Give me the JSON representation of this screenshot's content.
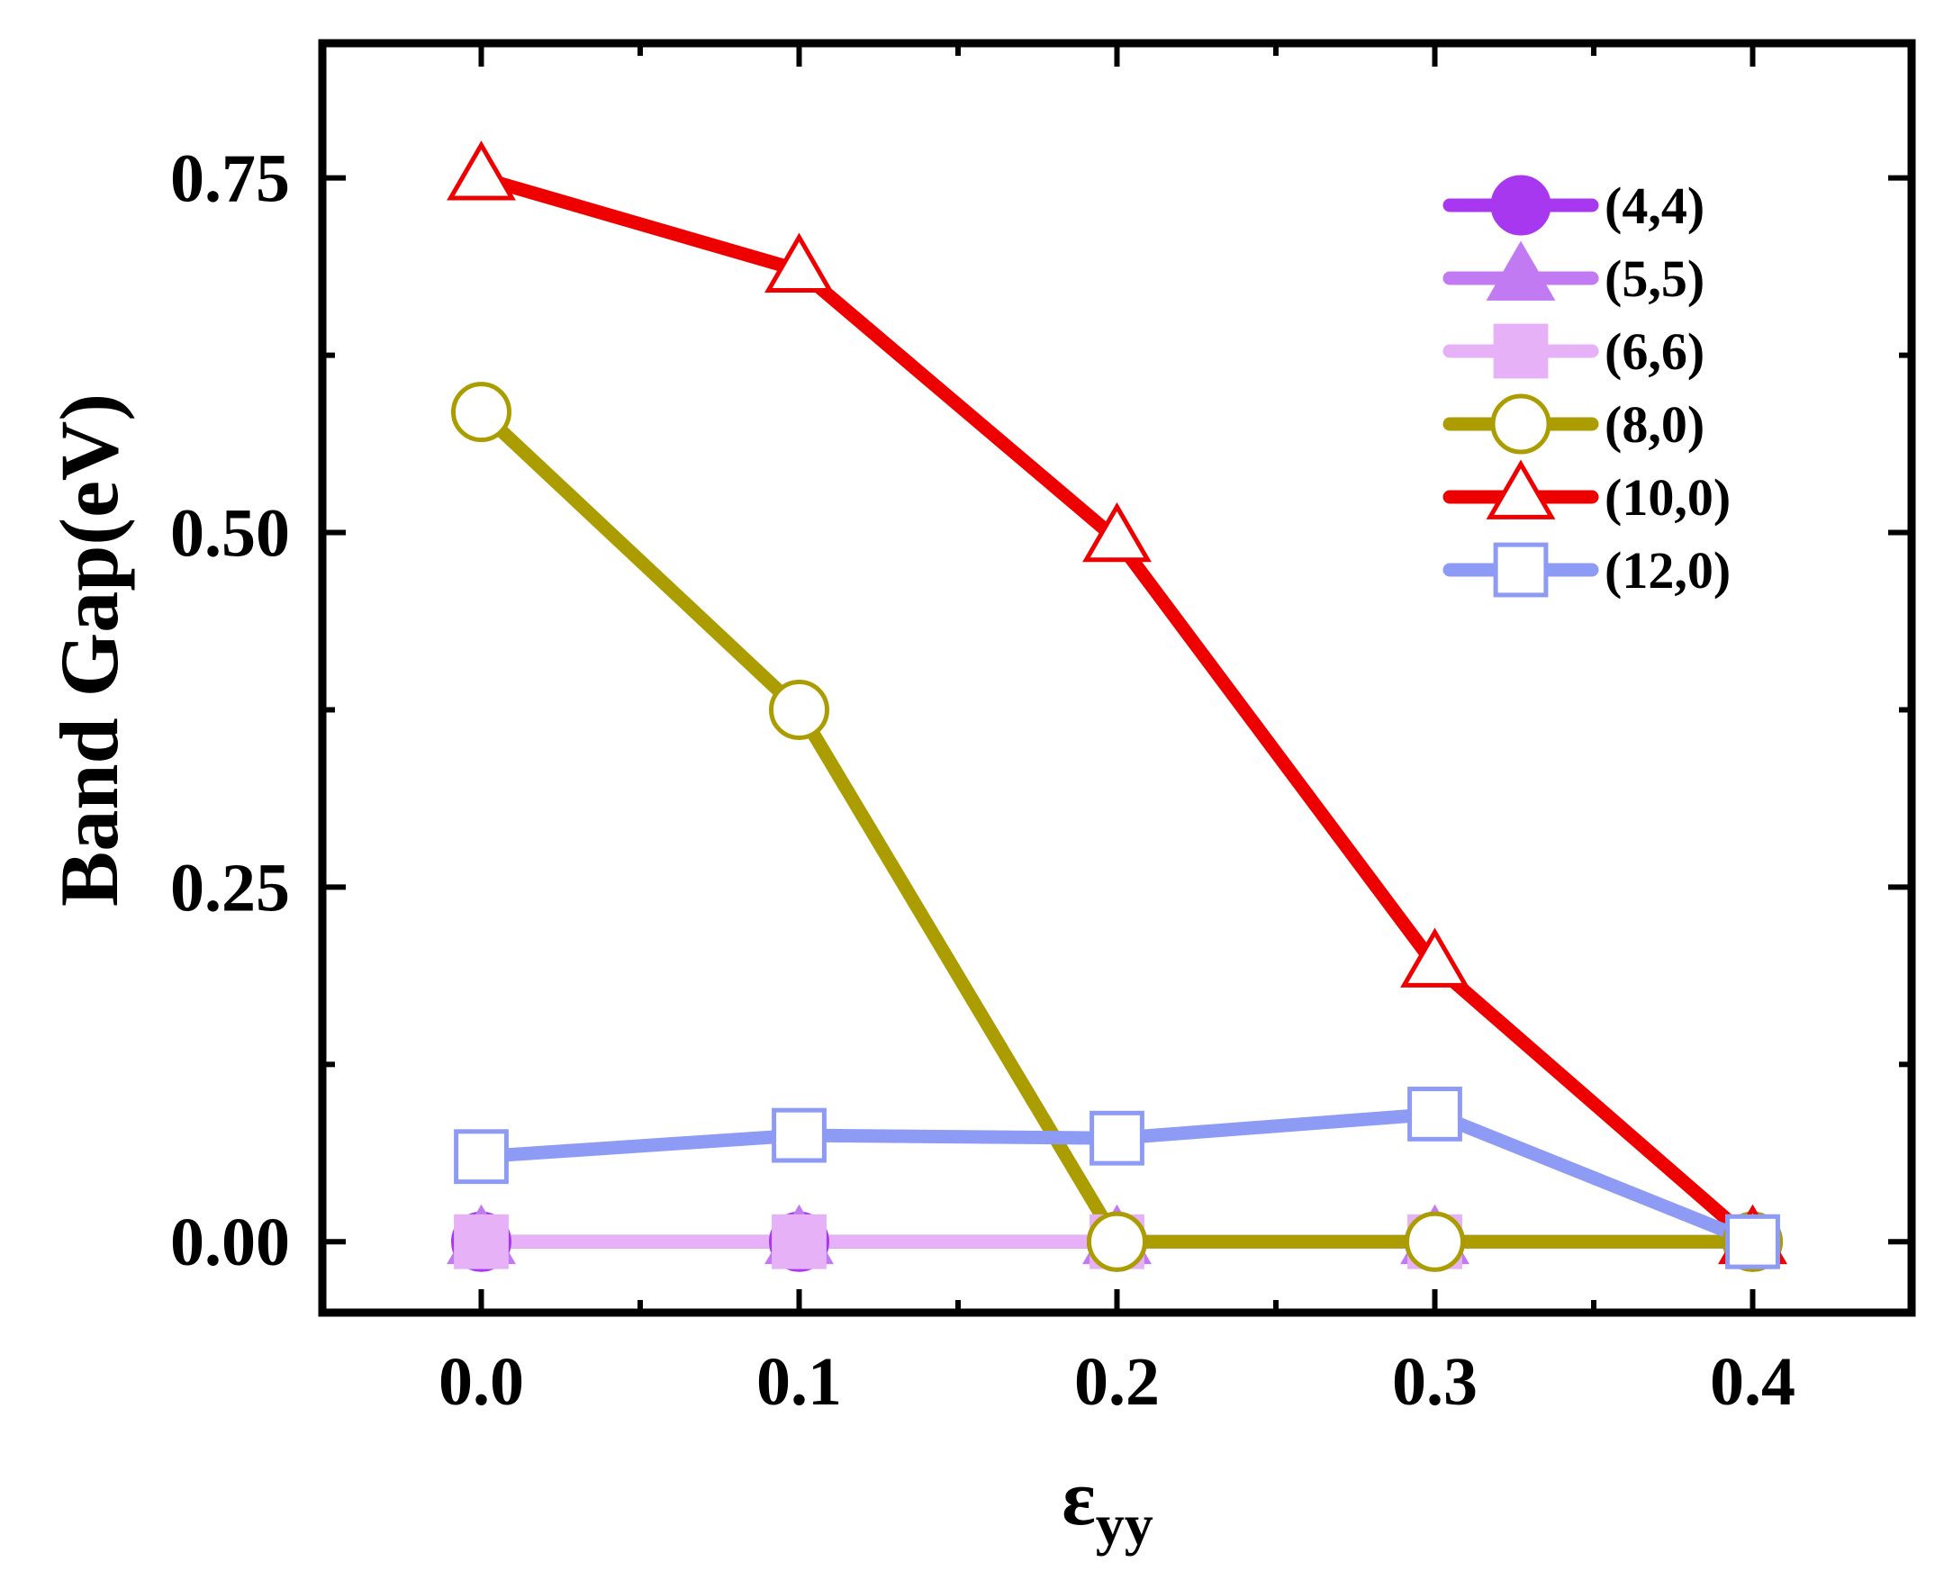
{
  "chart_data": {
    "type": "line",
    "xlabel": {
      "main": "ε",
      "sub": "yy"
    },
    "ylabel": "Band Gap(eV)",
    "x": [
      0.0,
      0.1,
      0.2,
      0.3,
      0.4
    ],
    "xticks": [
      "0.0",
      "0.1",
      "0.2",
      "0.3",
      "0.4"
    ],
    "yticks": [
      "0.00",
      "0.25",
      "0.50",
      "0.75"
    ],
    "xlim": [
      -0.05,
      0.45
    ],
    "ylim": [
      -0.05,
      0.845
    ],
    "grid": false,
    "legend_position": "top-right",
    "series": [
      {
        "name": "(4,4)",
        "values": [
          0,
          0,
          0,
          0,
          0
        ],
        "color": "#a838f0",
        "marker": "circle",
        "filled": true
      },
      {
        "name": "(5,5)",
        "values": [
          0,
          0,
          0,
          0,
          0
        ],
        "color": "#c27af2",
        "marker": "triangle",
        "filled": true
      },
      {
        "name": "(6,6)",
        "values": [
          0,
          0,
          0,
          0,
          0
        ],
        "color": "#e6b1f6",
        "marker": "square",
        "filled": true
      },
      {
        "name": "(8,0)",
        "values": [
          0.585,
          0.375,
          0,
          0,
          0
        ],
        "color": "#ab9c00",
        "marker": "circle",
        "filled": false
      },
      {
        "name": "(10,0)",
        "values": [
          0.75,
          0.685,
          0.495,
          0.195,
          0
        ],
        "color": "#ee0000",
        "marker": "triangle",
        "filled": false
      },
      {
        "name": "(12,0)",
        "values": [
          0.06,
          0.075,
          0.073,
          0.09,
          0
        ],
        "color": "#8d9bf5",
        "marker": "square",
        "filled": false
      }
    ]
  }
}
